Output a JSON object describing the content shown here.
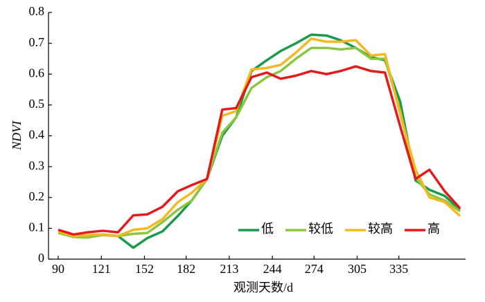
{
  "chart_data": {
    "type": "line",
    "xlabel": "观测天数/d",
    "ylabel": "NDVI",
    "x": [
      90,
      101,
      111,
      122,
      133,
      144,
      154,
      165,
      176,
      186,
      197,
      208,
      218,
      229,
      240,
      250,
      261,
      272,
      283,
      293,
      304,
      315,
      325,
      336,
      347,
      357,
      368,
      379
    ],
    "xlim": [
      83,
      383
    ],
    "xticks": [
      90,
      121,
      152,
      182,
      213,
      244,
      274,
      305,
      335
    ],
    "ylim": [
      0,
      0.8
    ],
    "yticks": [
      0,
      0.1,
      0.2,
      0.3,
      0.4,
      0.5,
      0.6,
      0.7,
      0.8
    ],
    "legend": "lower right",
    "series": [
      {
        "name": "低",
        "color": "#1a9a4a",
        "values": [
          0.09,
          0.075,
          0.072,
          0.08,
          0.075,
          0.037,
          0.068,
          0.09,
          0.14,
          0.19,
          0.26,
          0.4,
          0.46,
          0.61,
          0.645,
          0.675,
          0.7,
          0.728,
          0.725,
          0.71,
          0.685,
          0.655,
          0.645,
          0.51,
          0.255,
          0.225,
          0.205,
          0.16
        ]
      },
      {
        "name": "较低",
        "color": "#8cc63f",
        "values": [
          0.085,
          0.072,
          0.07,
          0.078,
          0.075,
          0.082,
          0.085,
          0.12,
          0.16,
          0.19,
          0.26,
          0.41,
          0.46,
          0.555,
          0.59,
          0.61,
          0.65,
          0.685,
          0.685,
          0.68,
          0.685,
          0.65,
          0.65,
          0.48,
          0.265,
          0.21,
          0.19,
          0.155
        ]
      },
      {
        "name": "较高",
        "color": "#f5b820",
        "values": [
          0.09,
          0.075,
          0.078,
          0.08,
          0.075,
          0.095,
          0.1,
          0.13,
          0.185,
          0.215,
          0.26,
          0.465,
          0.48,
          0.615,
          0.62,
          0.63,
          0.67,
          0.715,
          0.705,
          0.705,
          0.71,
          0.66,
          0.665,
          0.47,
          0.29,
          0.2,
          0.185,
          0.14
        ]
      },
      {
        "name": "高",
        "color": "#e31a1c",
        "values": [
          0.095,
          0.08,
          0.087,
          0.092,
          0.087,
          0.142,
          0.145,
          0.17,
          0.22,
          0.24,
          0.26,
          0.485,
          0.49,
          0.59,
          0.605,
          0.585,
          0.595,
          0.61,
          0.6,
          0.61,
          0.625,
          0.61,
          0.605,
          0.43,
          0.26,
          0.29,
          0.22,
          0.165
        ]
      }
    ]
  }
}
